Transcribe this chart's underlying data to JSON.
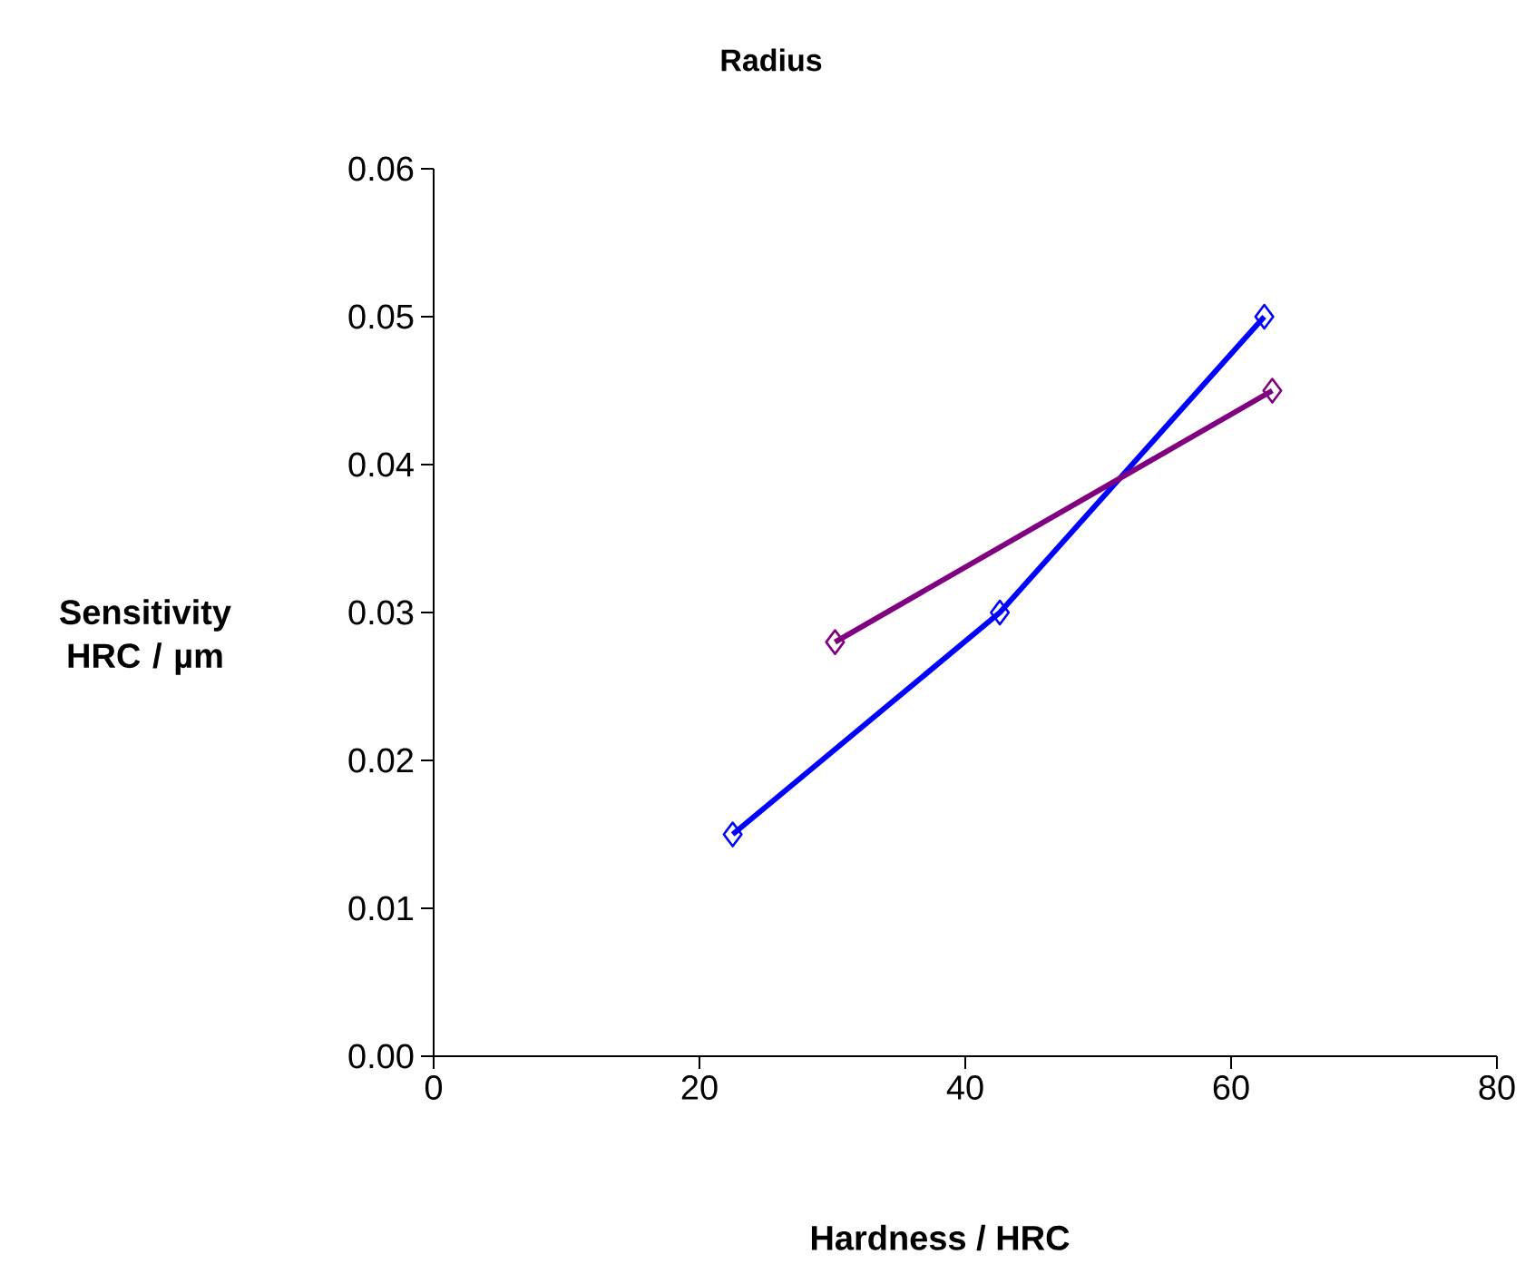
{
  "chart_data": {
    "type": "line",
    "title": "Radius",
    "xlabel": "Hardness / HRC",
    "ylabel": "Sensitivity HRC / µm",
    "series": [
      {
        "color": "#0000ff",
        "x": [
          22.5,
          42.6,
          62.5
        ],
        "values": [
          0.015,
          0.03,
          0.05
        ]
      },
      {
        "color": "#800080",
        "x": [
          30.2,
          63.1
        ],
        "values": [
          0.028,
          0.045
        ]
      }
    ],
    "xlim": [
      0,
      80
    ],
    "ylim": [
      0,
      0.06
    ],
    "xticks": [
      0,
      20,
      40,
      60,
      80
    ],
    "yticks": [
      {
        "value": 0,
        "label": "0.00"
      },
      0.01,
      0.02,
      0.03,
      0.04,
      0.05,
      0.06
    ],
    "marker": "diamond",
    "line_style": "solid"
  }
}
